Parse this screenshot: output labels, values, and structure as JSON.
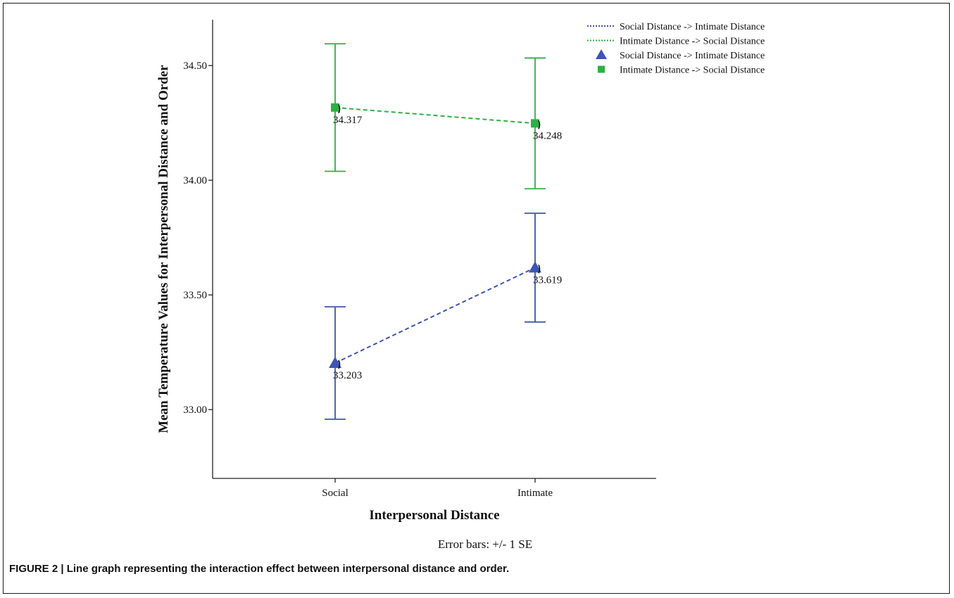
{
  "chart_data": {
    "type": "line",
    "categories": [
      "Social",
      "Intimate"
    ],
    "xlabel": "Interpersonal Distance",
    "ylabel": "Mean Temperature Values for Interpersonal Distance and Order",
    "ylim": [
      32.7,
      34.7
    ],
    "yticks": [
      33.0,
      33.5,
      34.0,
      34.5
    ],
    "ytick_labels": [
      "33.00",
      "33.50",
      "34.00",
      "34.50"
    ],
    "grid": false,
    "legend_position": "top-right",
    "series": [
      {
        "name": "Social Distance -> Intimate Distance",
        "color": "#3d55b5",
        "marker": "triangle",
        "values": [
          33.203,
          33.619
        ],
        "labels": [
          "33.203",
          "33.619"
        ],
        "error_low": [
          32.958,
          33.382
        ],
        "error_high": [
          33.448,
          33.856
        ]
      },
      {
        "name": "Intimate Distance -> Social Distance",
        "color": "#2eb045",
        "marker": "square",
        "values": [
          34.317,
          34.248
        ],
        "labels": [
          "34.317",
          "34.248"
        ],
        "error_low": [
          34.039,
          33.963
        ],
        "error_high": [
          34.595,
          34.533
        ]
      }
    ],
    "legend_entries": [
      {
        "label": "Social Distance -> Intimate Distance",
        "kind": "line",
        "series": 0
      },
      {
        "label": "Intimate Distance -> Social Distance",
        "kind": "line",
        "series": 1
      },
      {
        "label": "Social Distance -> Intimate Distance",
        "kind": "marker",
        "series": 0
      },
      {
        "label": "Intimate Distance -> Social Distance",
        "kind": "marker",
        "series": 1
      }
    ],
    "note": "Error bars: +/- 1 SE"
  },
  "caption": "FIGURE 2 | Line graph representing the interaction effect between interpersonal distance and order."
}
